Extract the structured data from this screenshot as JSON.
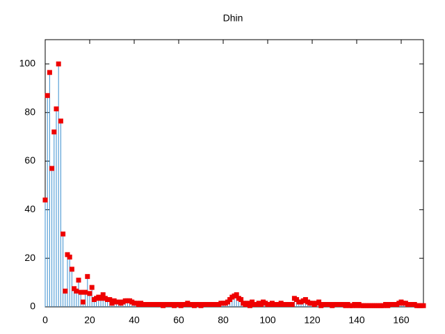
{
  "chart_data": {
    "type": "impulses",
    "title": "Dhin",
    "x": [
      0,
      1,
      2,
      3,
      4,
      5,
      6,
      7,
      8,
      9,
      10,
      11,
      12,
      13,
      14,
      15,
      16,
      17,
      18,
      19,
      20,
      21,
      22,
      23,
      24,
      25,
      26,
      27,
      28,
      29,
      30,
      31,
      32,
      33,
      34,
      35,
      36,
      37,
      38,
      39,
      40,
      41,
      42,
      43,
      44,
      45,
      46,
      47,
      48,
      49,
      50,
      51,
      52,
      53,
      54,
      55,
      56,
      57,
      58,
      59,
      60,
      61,
      62,
      63,
      64,
      65,
      66,
      67,
      68,
      69,
      70,
      71,
      72,
      73,
      74,
      75,
      76,
      77,
      78,
      79,
      80,
      81,
      82,
      83,
      84,
      85,
      86,
      87,
      88,
      89,
      90,
      91,
      92,
      93,
      94,
      95,
      96,
      97,
      98,
      99,
      100,
      101,
      102,
      103,
      104,
      105,
      106,
      107,
      108,
      109,
      110,
      111,
      112,
      113,
      114,
      115,
      116,
      117,
      118,
      119,
      120,
      121,
      122,
      123,
      124,
      125,
      126,
      127,
      128,
      129,
      130,
      131,
      132,
      133,
      134,
      135,
      136,
      137,
      138,
      139,
      140,
      141,
      142,
      143,
      144,
      145,
      146,
      147,
      148,
      149,
      150,
      151,
      152,
      153,
      154,
      155,
      156,
      157,
      158,
      159,
      160,
      161,
      162,
      163,
      164,
      165,
      166,
      167,
      168,
      169,
      170
    ],
    "values": [
      44,
      87,
      96.5,
      57,
      72,
      81.5,
      100,
      76.5,
      30,
      6.5,
      21.5,
      20.5,
      15.5,
      7.5,
      6.5,
      11,
      6,
      2,
      6,
      12.5,
      5.5,
      8,
      3,
      3.5,
      4,
      3.5,
      5,
      3.5,
      3,
      3,
      1.5,
      2.5,
      2,
      2,
      1.5,
      2,
      2.5,
      2.5,
      2.5,
      2,
      1.5,
      1.5,
      1,
      1.5,
      1,
      1,
      1,
      1,
      1,
      1,
      1,
      1,
      1,
      0.5,
      1,
      1,
      1,
      1,
      0.5,
      1,
      1,
      0.5,
      1,
      1,
      1.5,
      1,
      1,
      0.5,
      1,
      1,
      0.5,
      1,
      1,
      1,
      1,
      1,
      1,
      1,
      1,
      1.5,
      1.5,
      1.5,
      2,
      3,
      4,
      4.5,
      5,
      3.5,
      3,
      1.5,
      1,
      1.5,
      0.5,
      2,
      1,
      1,
      1.5,
      1,
      2,
      1.5,
      1,
      1,
      1.5,
      1,
      1,
      1,
      1.5,
      1,
      1,
      1,
      1,
      1,
      3.5,
      3,
      2,
      2,
      2.5,
      3,
      2,
      1.5,
      1.5,
      1,
      1.5,
      2,
      0.5,
      1,
      1,
      1,
      1,
      0.5,
      1,
      1,
      1,
      1,
      1,
      0.5,
      1,
      0.5,
      0.5,
      1,
      0.5,
      1,
      0.5,
      0.5,
      0.5,
      0.5,
      0.5,
      0.5,
      0.5,
      0.5,
      0.5,
      0.5,
      0.5,
      1,
      0.5,
      1,
      1,
      1,
      1,
      1.5,
      2,
      1.5,
      1.5,
      1,
      1,
      1,
      1,
      0.5,
      0.5,
      0.5,
      0.5
    ],
    "line_color": "#3a8fd0",
    "point_color": "#ee0000",
    "xlim": [
      0,
      170
    ],
    "ylim": [
      0,
      110
    ],
    "xticks": [
      0,
      20,
      40,
      60,
      80,
      100,
      120,
      140,
      160
    ],
    "yticks": [
      0,
      20,
      40,
      60,
      80,
      100
    ]
  }
}
